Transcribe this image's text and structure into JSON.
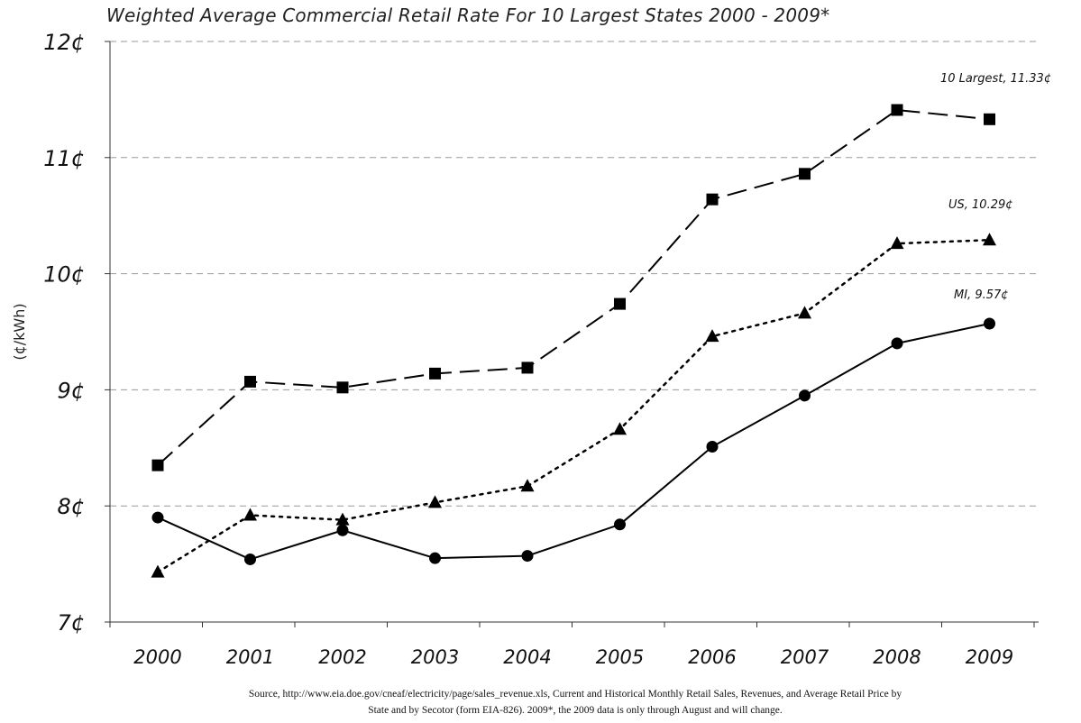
{
  "chart_data": {
    "type": "line",
    "title": "Weighted Average Commercial Retail Rate For 10 Largest States 2000 - 2009*",
    "ylabel": "(¢/kWh)",
    "xlabel": "",
    "categories": [
      "2000",
      "2001",
      "2002",
      "2003",
      "2004",
      "2005",
      "2006",
      "2007",
      "2008",
      "2009"
    ],
    "ylim": [
      7,
      12
    ],
    "yticks": [
      7,
      8,
      9,
      10,
      11,
      12
    ],
    "ytick_labels": [
      "7¢",
      "8¢",
      "9¢",
      "10¢",
      "11¢",
      "12¢"
    ],
    "grid": "horizontal dashed",
    "series": [
      {
        "key": "largest",
        "end_label": "10 Largest, 11.33¢",
        "line_style": "long-dash",
        "marker": "square",
        "values": [
          8.35,
          9.07,
          9.02,
          9.14,
          9.19,
          9.74,
          10.64,
          10.86,
          11.41,
          11.33
        ]
      },
      {
        "key": "us",
        "end_label": "US, 10.29¢",
        "line_style": "dotted",
        "marker": "triangle",
        "values": [
          7.43,
          7.92,
          7.88,
          8.03,
          8.17,
          8.66,
          9.46,
          9.66,
          10.26,
          10.29
        ]
      },
      {
        "key": "mi",
        "end_label": "MI, 9.57¢",
        "line_style": "solid",
        "marker": "circle",
        "values": [
          7.9,
          7.54,
          7.79,
          7.55,
          7.57,
          7.84,
          8.51,
          8.95,
          9.4,
          9.57
        ]
      }
    ]
  },
  "source_note": {
    "line1": "Source, http://www.eia.doe.gov/cneaf/electricity/page/sales_revenue.xls, Current and Historical Monthly Retail Sales, Revenues, and Average Retail Price by",
    "line2": "State and by Secotor (form EIA-826). 2009*, the 2009 data is only through August and will change."
  },
  "colors": {
    "series": "#000000",
    "grid": "#9a9a9a",
    "axis": "#333333"
  }
}
